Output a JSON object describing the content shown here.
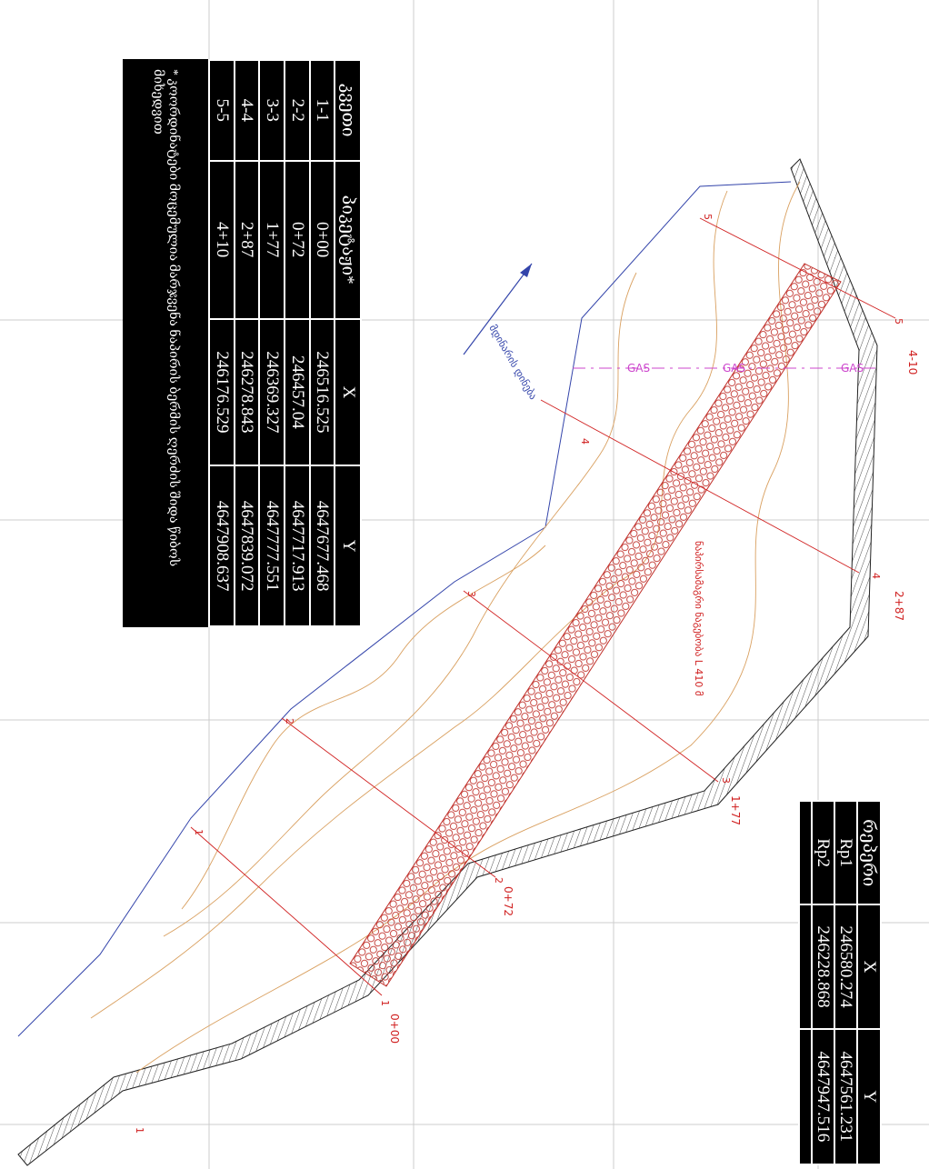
{
  "table": {
    "headers": [
      "კვეთი",
      "პიკეტაჟი*",
      "X",
      "Y"
    ],
    "rows": [
      [
        "1-1",
        "0+00",
        "246516.525",
        "4647677.468"
      ],
      [
        "2-2",
        "0+72",
        "246457.04",
        "4647717.913"
      ],
      [
        "3-3",
        "1+77",
        "246369.327",
        "4647777.551"
      ],
      [
        "4-4",
        "2+87",
        "246278.843",
        "4647839.072"
      ],
      [
        "5-5",
        "4+10",
        "246176.529",
        "4647908.637"
      ]
    ],
    "note": "* კოორდინატები მოცემულია მარჯვენა ნაპირის ბერმის ღერძის შიდა წიბოს მიხედვით"
  },
  "reference_table": {
    "headers": [
      "რეპერი",
      "X",
      "Y"
    ],
    "rows": [
      [
        "Rp1",
        "246580.274",
        "4647561.231"
      ],
      [
        "Rp2",
        "246228.868",
        "4647947.516"
      ]
    ]
  },
  "labels": {
    "flow": "მდინარის დინება",
    "structure": "ნაპირსამაგრი ნაგებობა L 410 მ",
    "gas": "GAS",
    "stations": [
      "0+00",
      "0+72",
      "1+77",
      "2+87",
      "4-10"
    ],
    "sections": [
      "1",
      "2",
      "3",
      "4",
      "5"
    ]
  }
}
